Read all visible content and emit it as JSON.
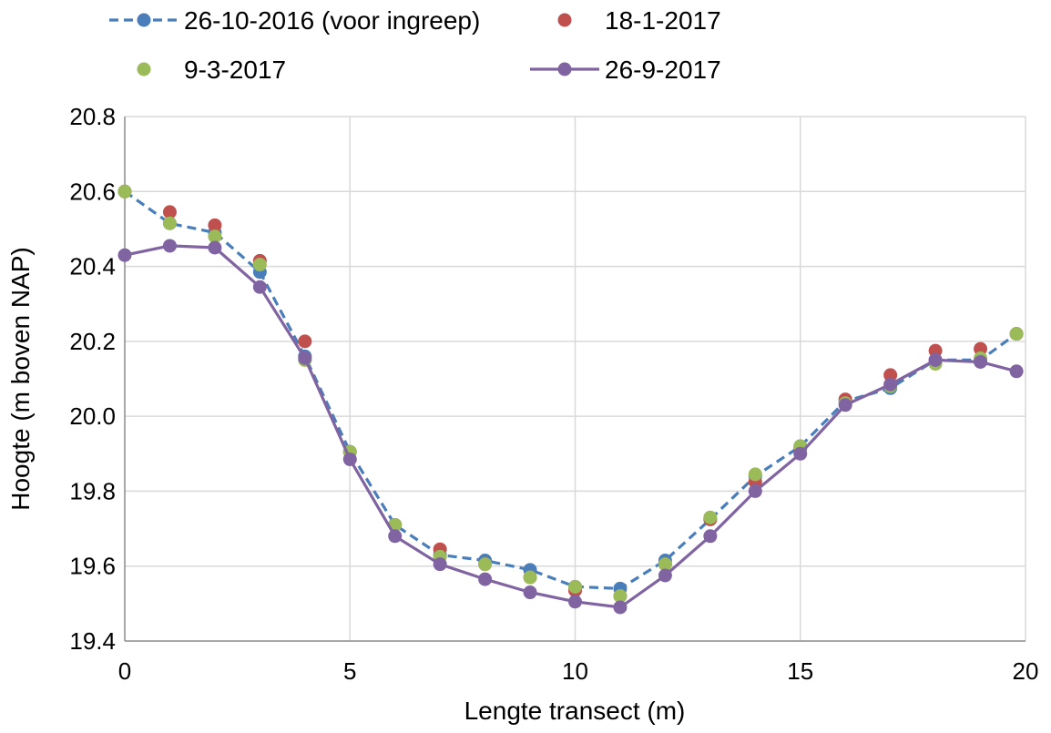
{
  "chart_data": {
    "type": "scatter",
    "title": "",
    "xlabel": "Lengte transect (m)",
    "ylabel": "Hoogte (m boven NAP)",
    "xlim": [
      0,
      20
    ],
    "ylim": [
      19.4,
      20.8
    ],
    "xticks": [
      0,
      5,
      10,
      15,
      20
    ],
    "xtick_labels": [
      "0",
      "5",
      "10",
      "15",
      "20"
    ],
    "yticks": [
      19.4,
      19.6,
      19.8,
      20.0,
      20.2,
      20.4,
      20.6,
      20.8
    ],
    "ytick_labels": [
      "19.4",
      "19.6",
      "19.8",
      "20.0",
      "20.2",
      "20.4",
      "20.6",
      "20.8"
    ],
    "grid": true,
    "legend_position": "top",
    "series": [
      {
        "name": "26-10-2016 (voor ingreep)",
        "color": "#4a7ebb",
        "line": "dashed",
        "markers": true,
        "x": [
          0,
          1,
          2,
          3,
          4,
          5,
          6,
          7,
          8,
          9,
          10,
          11,
          12,
          13,
          14,
          15,
          16,
          17,
          18,
          19,
          19.8
        ],
        "y": [
          20.6,
          20.515,
          20.49,
          20.385,
          20.16,
          19.905,
          19.71,
          19.63,
          19.615,
          19.59,
          19.545,
          19.54,
          19.615,
          19.725,
          19.84,
          19.92,
          20.04,
          20.075,
          20.15,
          20.15,
          20.22
        ]
      },
      {
        "name": "18-1-2017",
        "color": "#c0504d",
        "line": "none",
        "markers": true,
        "x": [
          0,
          1,
          2,
          3,
          4,
          5,
          6,
          7,
          8,
          9,
          10,
          11,
          12,
          13,
          14,
          15,
          16,
          17,
          18,
          19,
          19.8
        ],
        "y": [
          20.6,
          20.545,
          20.51,
          20.415,
          20.2,
          19.905,
          19.71,
          19.645,
          19.605,
          19.57,
          19.535,
          19.52,
          19.605,
          19.725,
          19.825,
          19.915,
          20.045,
          20.11,
          20.175,
          20.18,
          20.22
        ]
      },
      {
        "name": "9-3-2017",
        "color": "#9bbb59",
        "line": "none",
        "markers": true,
        "x": [
          0,
          1,
          2,
          3,
          4,
          5,
          6,
          7,
          8,
          9,
          10,
          11,
          12,
          13,
          14,
          15,
          16,
          17,
          18,
          19,
          19.8
        ],
        "y": [
          20.6,
          20.515,
          20.48,
          20.405,
          20.15,
          19.905,
          19.71,
          19.625,
          19.605,
          19.57,
          19.545,
          19.52,
          19.605,
          19.73,
          19.845,
          19.92,
          20.035,
          20.08,
          20.14,
          20.155,
          20.22
        ]
      },
      {
        "name": "26-9-2017",
        "color": "#8064a2",
        "line": "solid",
        "markers": true,
        "x": [
          0,
          1,
          2,
          3,
          4,
          5,
          6,
          7,
          8,
          9,
          10,
          11,
          12,
          13,
          14,
          15,
          16,
          17,
          18,
          19,
          19.8
        ],
        "y": [
          20.43,
          20.455,
          20.45,
          20.345,
          20.155,
          19.885,
          19.68,
          19.605,
          19.565,
          19.53,
          19.505,
          19.49,
          19.575,
          19.68,
          19.8,
          19.9,
          20.03,
          20.085,
          20.15,
          20.145,
          20.12
        ]
      }
    ]
  }
}
